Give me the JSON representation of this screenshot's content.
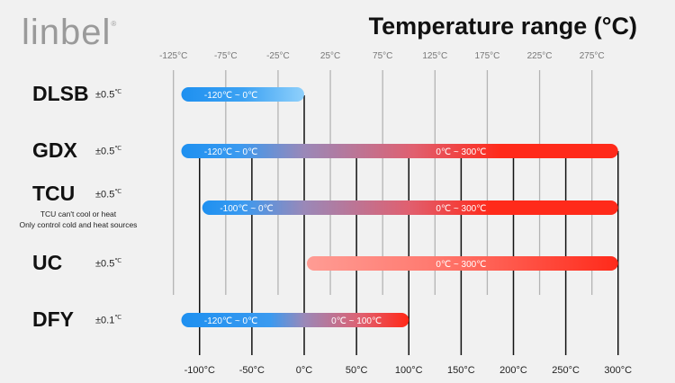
{
  "logo": "linbel",
  "logo_mark": "®",
  "chart_data": {
    "type": "bar",
    "title": "Temperature range (°C)",
    "top_ticks": [
      "-125°C",
      "-75°C",
      "-25°C",
      "25°C",
      "75°C",
      "125°C",
      "175°C",
      "225°C",
      "275°C"
    ],
    "top_tick_values": [
      -125,
      -75,
      -25,
      25,
      75,
      125,
      175,
      225,
      275
    ],
    "bottom_ticks": [
      "-100°C",
      "-50°C",
      "0°C",
      "50°C",
      "100°C",
      "150°C",
      "200°C",
      "250°C",
      "300°C"
    ],
    "bottom_tick_values": [
      -100,
      -50,
      0,
      50,
      100,
      150,
      200,
      250,
      300
    ],
    "xlim": [
      -125,
      300
    ],
    "colors": {
      "cold": "#1e90f0",
      "cold_light": "#8fd0fb",
      "hot": "#ff2a1a",
      "hot_light": "#ff9c94"
    },
    "series": [
      {
        "name": "DLSB",
        "accuracy": "±0.5",
        "unit": "℃",
        "range": [
          -120,
          0
        ],
        "labels": [
          {
            "text": "-120℃ ~ 0℃",
            "at": -70
          }
        ],
        "style": "cold-only"
      },
      {
        "name": "GDX",
        "accuracy": "±0.5",
        "unit": "℃",
        "range": [
          -120,
          300
        ],
        "labels": [
          {
            "text": "-120℃ ~ 0℃",
            "at": -70
          },
          {
            "text": "0℃ ~ 300℃",
            "at": 150
          }
        ],
        "style": "cold-hot"
      },
      {
        "name": "TCU",
        "accuracy": "±0.5",
        "unit": "℃",
        "note": [
          "TCU can't cool or heat",
          "Only control cold and heat sources"
        ],
        "range": [
          -100,
          300
        ],
        "labels": [
          {
            "text": "-100℃ ~ 0℃",
            "at": -55
          },
          {
            "text": "0℃ ~ 300℃",
            "at": 150
          }
        ],
        "style": "cold-hot"
      },
      {
        "name": "UC",
        "accuracy": "±0.5",
        "unit": "℃",
        "range": [
          0,
          300
        ],
        "labels": [
          {
            "text": "0℃ ~ 300℃",
            "at": 150
          }
        ],
        "style": "hot-only"
      },
      {
        "name": "DFY",
        "accuracy": "±0.1",
        "unit": "℃",
        "range": [
          -120,
          100
        ],
        "labels": [
          {
            "text": "-120℃ ~ 0℃",
            "at": -70
          },
          {
            "text": "0℃ ~ 100℃",
            "at": 50
          }
        ],
        "style": "cold-hot"
      }
    ]
  }
}
